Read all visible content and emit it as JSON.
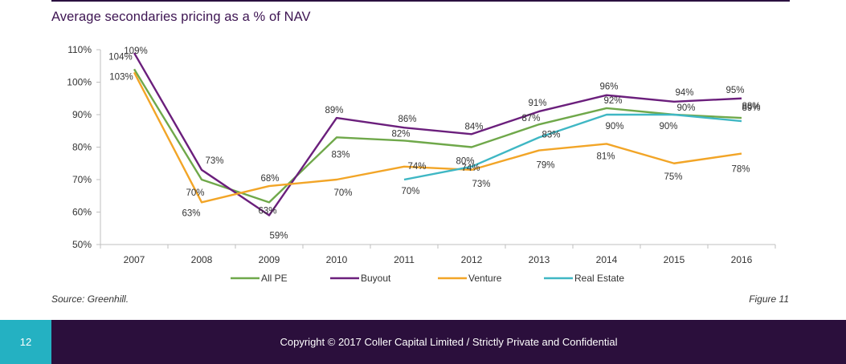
{
  "title": "Average secondaries pricing as a % of NAV",
  "source": "Source: Greenhill.",
  "figure_label": "Figure 11",
  "footer": {
    "page_number": "12",
    "copyright": "Copyright © 2017 Coller Capital Limited / Strictly Private and Confidential"
  },
  "chart_data": {
    "type": "line",
    "title": "Average secondaries pricing as a % of NAV",
    "x": [
      "2007",
      "2008",
      "2009",
      "2010",
      "2011",
      "2012",
      "2013",
      "2014",
      "2015",
      "2016"
    ],
    "y_ticks": [
      "50%",
      "60%",
      "70%",
      "80%",
      "90%",
      "100%",
      "110%"
    ],
    "ylim": [
      50,
      110
    ],
    "grid": false,
    "legend_position": "bottom",
    "series": [
      {
        "name": "All PE",
        "color": "#6fa84a",
        "values": [
          104,
          70,
          63,
          83,
          82,
          80,
          87,
          92,
          90,
          89
        ],
        "labels": [
          "104%",
          "70%",
          "63%",
          "83%",
          "82%",
          "80%",
          "87%",
          "92%",
          "90%",
          "89%"
        ]
      },
      {
        "name": "Buyout",
        "color": "#6b1f7c",
        "values": [
          109,
          73,
          59,
          89,
          86,
          84,
          91,
          96,
          94,
          95
        ],
        "labels": [
          "109%",
          "73%",
          "59%",
          "89%",
          "86%",
          "84%",
          "91%",
          "96%",
          "94%",
          "95%"
        ]
      },
      {
        "name": "Venture",
        "color": "#f2a527",
        "values": [
          103,
          63,
          68,
          70,
          74,
          73,
          79,
          81,
          75,
          78
        ],
        "labels": [
          "103%",
          "63%",
          "68%",
          "70%",
          "74%",
          "73%",
          "79%",
          "81%",
          "75%",
          "78%"
        ]
      },
      {
        "name": "Real Estate",
        "color": "#3fb7c4",
        "values": [
          null,
          null,
          null,
          null,
          70,
          74,
          83,
          90,
          90,
          88
        ],
        "labels": [
          null,
          null,
          null,
          null,
          "70%",
          "74%",
          "83%",
          "90%",
          "90%",
          "88%"
        ]
      }
    ]
  }
}
